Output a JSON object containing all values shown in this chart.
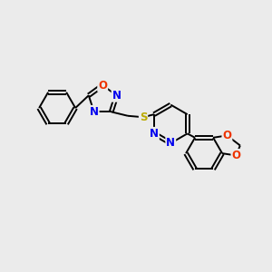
{
  "background_color": "#ebebeb",
  "bond_color": "#000000",
  "atom_colors": {
    "N": "#0000ee",
    "O": "#ee3300",
    "S": "#bbaa00",
    "C": "#000000"
  },
  "font_size": 8.5,
  "figsize": [
    3.0,
    3.0
  ],
  "dpi": 100
}
